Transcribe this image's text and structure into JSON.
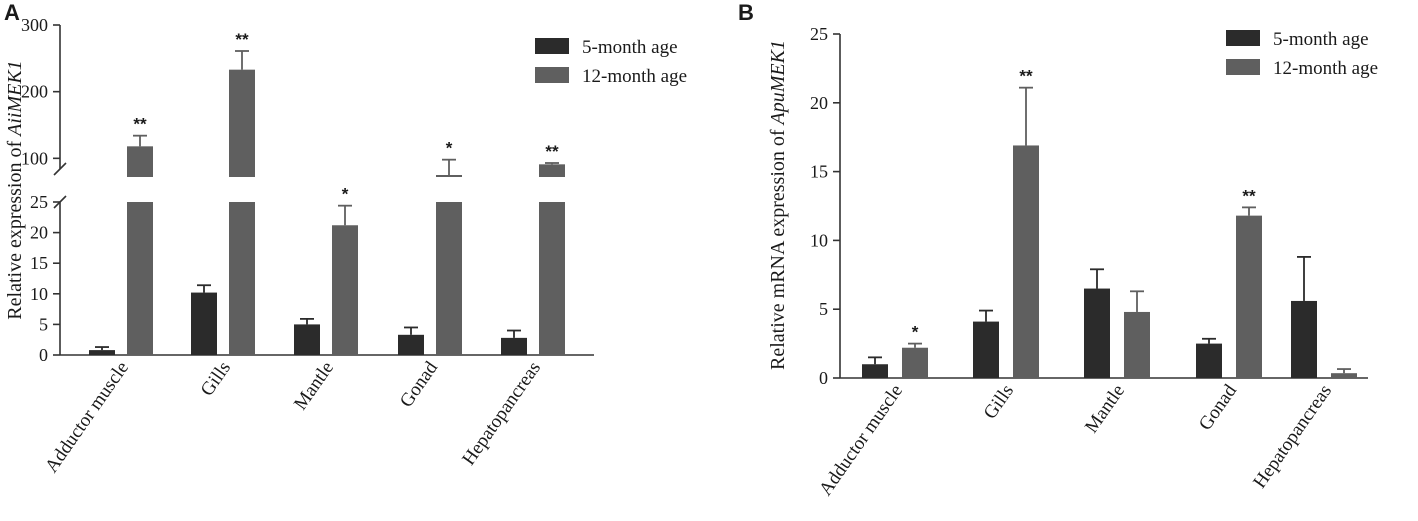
{
  "chart_data": [
    {
      "type": "bar",
      "panel": "A",
      "ylabel_prefix": "Relative expression of ",
      "ylabel_gene": "AiiMEK1",
      "categories": [
        "Adductor muscle",
        "Gills",
        "Mantle",
        "Gonad",
        "Hepatopancreas"
      ],
      "series": [
        {
          "name": "5-month age",
          "color": "#2b2b2b",
          "values": [
            0.8,
            10.2,
            5.0,
            3.3,
            2.8
          ],
          "errors": [
            0.5,
            1.2,
            0.9,
            1.2,
            1.2
          ],
          "sig": [
            "",
            "",
            "",
            "",
            ""
          ]
        },
        {
          "name": "12-month age",
          "color": "#5f5f5f",
          "values": [
            118,
            233,
            21.2,
            75,
            91
          ],
          "errors": [
            16,
            28,
            3.2,
            23,
            2
          ],
          "sig": [
            "**",
            "**",
            "*",
            "*",
            "**"
          ]
        }
      ],
      "y_axis_broken": true,
      "lower_segment": {
        "ylim": [
          0,
          25
        ],
        "ticks": [
          0,
          5,
          10,
          15,
          20,
          25
        ]
      },
      "upper_segment": {
        "ylim": [
          72,
          300
        ],
        "ticks": [
          100,
          200,
          300
        ]
      },
      "legend_position": "top-right"
    },
    {
      "type": "bar",
      "panel": "B",
      "ylabel_prefix": "Relative mRNA expression of ",
      "ylabel_gene": "ApuMEK1",
      "categories": [
        "Adductor muscle",
        "Gills",
        "Mantle",
        "Gonad",
        "Hepatopancreas"
      ],
      "series": [
        {
          "name": "5-month age",
          "color": "#2b2b2b",
          "values": [
            1.0,
            4.1,
            6.5,
            2.5,
            5.6
          ],
          "errors": [
            0.5,
            0.8,
            1.4,
            0.35,
            3.2
          ],
          "sig": [
            "",
            "",
            "",
            "",
            ""
          ]
        },
        {
          "name": "12-month age",
          "color": "#5f5f5f",
          "values": [
            2.2,
            16.9,
            4.8,
            11.8,
            0.35
          ],
          "errors": [
            0.3,
            4.2,
            1.5,
            0.6,
            0.3
          ],
          "sig": [
            "*",
            "**",
            "",
            "**",
            ""
          ]
        }
      ],
      "ylim": [
        0,
        25
      ],
      "ticks": [
        0,
        5,
        10,
        15,
        20,
        25
      ],
      "legend_position": "top-right"
    }
  ]
}
